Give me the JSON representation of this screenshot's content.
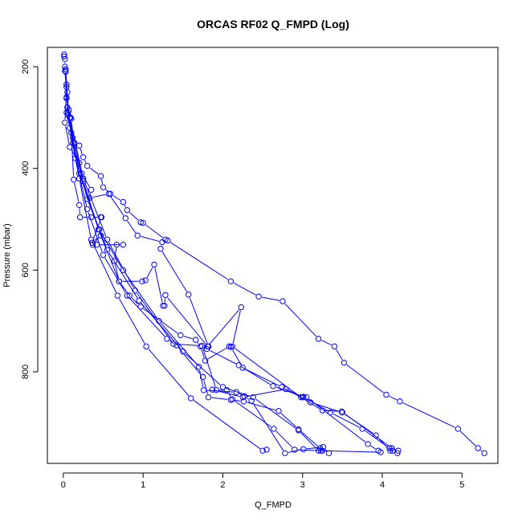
{
  "chart_data": {
    "type": "line",
    "title": "ORCAS RF02 Q_FMPD (Log)",
    "xlabel": "Q_FMPD",
    "ylabel": "Pressure (mbar)",
    "xlim": [
      -0.2,
      5.45
    ],
    "ylim": [
      980,
      162
    ],
    "y_axis_reversed": true,
    "x_ticks": [
      0,
      1,
      2,
      3,
      4,
      5
    ],
    "y_ticks": [
      200,
      400,
      600,
      800
    ],
    "grid": false,
    "legend": "none",
    "series_color": "#0000ff",
    "marker": "open-circle",
    "series": [
      {
        "points": [
          [
            0.01,
            176
          ],
          [
            0.01,
            180
          ],
          [
            0.02,
            185
          ],
          [
            0.02,
            200
          ],
          [
            0.03,
            205
          ],
          [
            0.04,
            235
          ],
          [
            0.05,
            250
          ],
          [
            0.04,
            262
          ],
          [
            0.07,
            285
          ],
          [
            0.09,
            300
          ],
          [
            0.1,
            302
          ],
          [
            0.12,
            340
          ],
          [
            0.2,
            355
          ],
          [
            0.25,
            378
          ],
          [
            0.3,
            395
          ],
          [
            0.47,
            415
          ],
          [
            0.5,
            437
          ],
          [
            0.59,
            450
          ],
          [
            0.75,
            466
          ],
          [
            0.8,
            482
          ],
          [
            0.97,
            506
          ],
          [
            1.0,
            507
          ],
          [
            1.28,
            540
          ],
          [
            1.31,
            542
          ],
          [
            2.1,
            622
          ],
          [
            2.45,
            652
          ],
          [
            2.75,
            661
          ],
          [
            3.2,
            735
          ],
          [
            3.4,
            750
          ],
          [
            3.52,
            782
          ],
          [
            4.05,
            845
          ],
          [
            4.22,
            858
          ],
          [
            4.95,
            912
          ],
          [
            5.2,
            950
          ],
          [
            5.28,
            960
          ]
        ]
      },
      {
        "points": [
          [
            0.04,
            240
          ],
          [
            0.02,
            310
          ],
          [
            0.08,
            358
          ],
          [
            0.2,
            389
          ],
          [
            0.23,
            410
          ],
          [
            0.35,
            442
          ],
          [
            0.33,
            458
          ],
          [
            0.57,
            450
          ],
          [
            0.78,
            498
          ],
          [
            0.93,
            532
          ],
          [
            1.24,
            545
          ],
          [
            1.22,
            558
          ],
          [
            1.57,
            648
          ],
          [
            1.82,
            750
          ],
          [
            1.8,
            755
          ],
          [
            2.2,
            787
          ],
          [
            2.63,
            828
          ],
          [
            3.01,
            849
          ],
          [
            3.35,
            880
          ],
          [
            3.75,
            912
          ],
          [
            4.09,
            950
          ],
          [
            4.13,
            955
          ],
          [
            4.19,
            960
          ]
        ]
      },
      {
        "points": [
          [
            0.04,
            290
          ],
          [
            0.1,
            330
          ],
          [
            0.13,
            422
          ],
          [
            0.2,
            472
          ],
          [
            0.21,
            496
          ],
          [
            0.35,
            496
          ],
          [
            0.47,
            496
          ],
          [
            0.48,
            496
          ],
          [
            0.36,
            546
          ],
          [
            0.47,
            532
          ],
          [
            0.37,
            550
          ],
          [
            0.42,
            550
          ],
          [
            0.75,
            550
          ],
          [
            0.67,
            550
          ],
          [
            0.64,
            582
          ],
          [
            0.7,
            622
          ],
          [
            0.99,
            622
          ],
          [
            1.03,
            620
          ],
          [
            1.14,
            589
          ],
          [
            1.25,
            670
          ],
          [
            1.27,
            670
          ],
          [
            1.28,
            649
          ],
          [
            1.81,
            750
          ],
          [
            2.23,
            673
          ],
          [
            2.12,
            750
          ],
          [
            2.98,
            850
          ],
          [
            3.25,
            876
          ],
          [
            3.49,
            878
          ],
          [
            4.12,
            950
          ],
          [
            4.2,
            955
          ]
        ]
      },
      {
        "points": [
          [
            0.02,
            208
          ],
          [
            0.06,
            295
          ],
          [
            0.14,
            350
          ],
          [
            0.25,
            425
          ],
          [
            0.44,
            520
          ],
          [
            0.7,
            622
          ],
          [
            0.83,
            650
          ],
          [
            0.97,
            672
          ],
          [
            1.47,
            728
          ],
          [
            1.66,
            737
          ],
          [
            1.72,
            750
          ],
          [
            1.78,
            778
          ],
          [
            2.08,
            750
          ],
          [
            2.1,
            751
          ],
          [
            2.25,
            792
          ],
          [
            2.74,
            830
          ],
          [
            3.0,
            850
          ],
          [
            3.05,
            850
          ],
          [
            3.82,
            942
          ],
          [
            3.95,
            955
          ]
        ]
      },
      {
        "points": [
          [
            0.03,
            210
          ],
          [
            0.08,
            320
          ],
          [
            0.2,
            420
          ],
          [
            0.35,
            540
          ],
          [
            0.68,
            650
          ],
          [
            1.04,
            750
          ],
          [
            1.6,
            852
          ],
          [
            2.5,
            955
          ],
          [
            2.55,
            953
          ]
        ]
      },
      {
        "points": [
          [
            0.05,
            280
          ],
          [
            0.15,
            380
          ],
          [
            0.3,
            480
          ],
          [
            0.5,
            570
          ],
          [
            0.8,
            650
          ],
          [
            1.3,
            735
          ],
          [
            1.42,
            748
          ],
          [
            1.75,
            810
          ],
          [
            1.82,
            850
          ],
          [
            2.1,
            855
          ],
          [
            2.26,
            858
          ],
          [
            2.7,
            877
          ],
          [
            2.95,
            913
          ],
          [
            3.22,
            950
          ],
          [
            3.25,
            955
          ]
        ]
      },
      {
        "points": [
          [
            0.08,
            300
          ],
          [
            0.25,
            420
          ],
          [
            0.55,
            540
          ],
          [
            0.9,
            640
          ],
          [
            1.38,
            745
          ],
          [
            1.74,
            749
          ],
          [
            1.92,
            836
          ],
          [
            2.05,
            836
          ],
          [
            2.12,
            854
          ],
          [
            2.64,
            912
          ],
          [
            2.9,
            953
          ],
          [
            3.23,
            955
          ]
        ]
      },
      {
        "points": [
          [
            0.06,
            290
          ],
          [
            0.2,
            410
          ],
          [
            0.45,
            520
          ],
          [
            0.75,
            600
          ],
          [
            1.2,
            700
          ],
          [
            1.7,
            790
          ],
          [
            1.76,
            836
          ],
          [
            2.17,
            840
          ],
          [
            2.27,
            848
          ],
          [
            2.36,
            857
          ],
          [
            2.78,
            960
          ],
          [
            3.01,
            952
          ],
          [
            3.26,
            948
          ],
          [
            3.33,
            960
          ]
        ]
      },
      {
        "points": [
          [
            0.04,
            260
          ],
          [
            0.12,
            350
          ],
          [
            0.3,
            460
          ],
          [
            0.55,
            560
          ],
          [
            0.95,
            660
          ],
          [
            1.5,
            760
          ],
          [
            2.0,
            830
          ],
          [
            2.38,
            850
          ],
          [
            2.95,
            915
          ],
          [
            3.2,
            955
          ],
          [
            3.98,
            958
          ]
        ]
      },
      {
        "points": [
          [
            1.87,
            835
          ],
          [
            2.25,
            850
          ],
          [
            2.79,
            834
          ],
          [
            3.1,
            860
          ],
          [
            3.5,
            880
          ],
          [
            3.92,
            925
          ],
          [
            4.1,
            955
          ]
        ]
      }
    ]
  }
}
